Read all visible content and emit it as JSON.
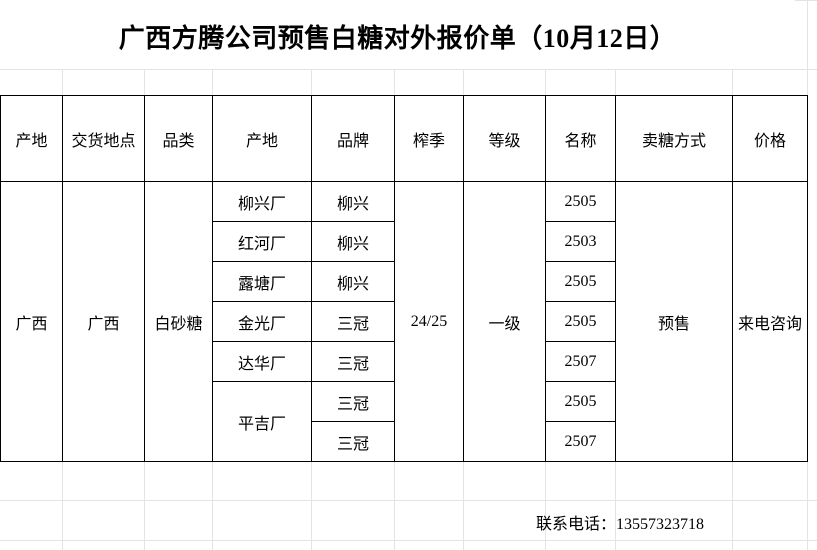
{
  "title": "广西方腾公司预售白糖对外报价单（10月12日）",
  "headers": [
    "产地",
    "交货地点",
    "品类",
    "产地",
    "品牌",
    "榨季",
    "等级",
    "名称",
    "卖糖方式",
    "价格"
  ],
  "merged": {
    "origin": "广西",
    "delivery": "广西",
    "category": "白砂糖",
    "season": "24/25",
    "grade": "一级",
    "sale_method": "预售",
    "price": "来电咨询"
  },
  "rows": [
    {
      "mill": "柳兴厂",
      "brand": "柳兴",
      "name": "2505"
    },
    {
      "mill": "红河厂",
      "brand": "柳兴",
      "name": "2503"
    },
    {
      "mill": "露塘厂",
      "brand": "柳兴",
      "name": "2505"
    },
    {
      "mill": "金光厂",
      "brand": "三冠",
      "name": "2505"
    },
    {
      "mill": "达华厂",
      "brand": "三冠",
      "name": "2507"
    },
    {
      "mill": "平吉厂",
      "brand": "三冠",
      "name": "2505"
    },
    {
      "mill": "",
      "brand": "三冠",
      "name": "2507"
    }
  ],
  "contact": "联系电话：13557323718"
}
